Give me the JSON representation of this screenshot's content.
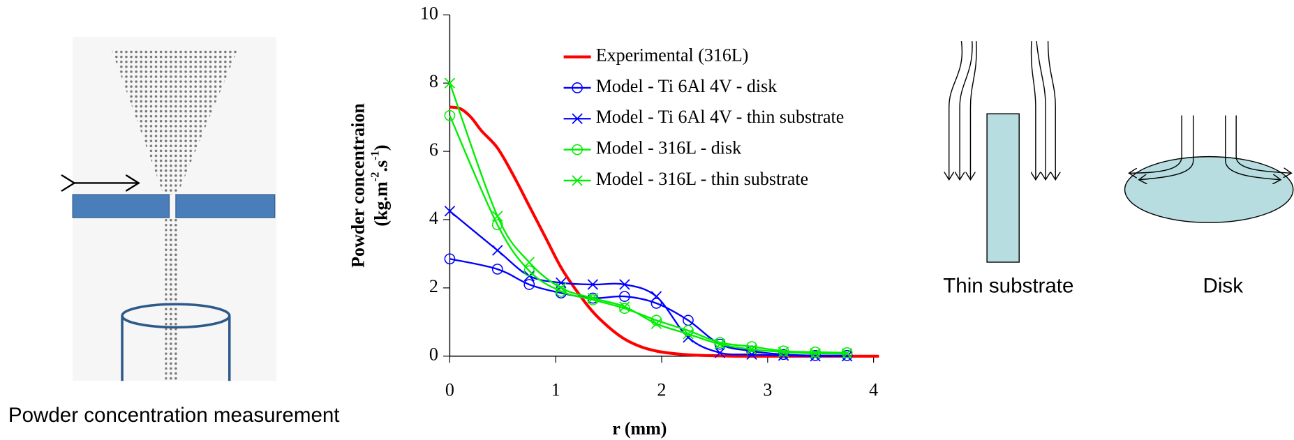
{
  "chart_data": {
    "type": "line",
    "x_label": "r (mm)",
    "y_label": {
      "line1": "Powder concentraion",
      "unit": [
        "(kg.m",
        "-2",
        ".s",
        "-1",
        ")"
      ]
    },
    "xlim": [
      0,
      4.05
    ],
    "ylim": [
      0,
      10
    ],
    "xticks": [
      0,
      1,
      2,
      3,
      4
    ],
    "yticks": [
      0,
      2,
      4,
      6,
      8,
      10
    ],
    "series": [
      {
        "name": "Experimental (316L)",
        "color": "#ff0000",
        "marker": "none",
        "x": [
          0,
          0.1,
          0.2,
          0.3,
          0.45,
          0.6,
          0.75,
          0.9,
          1.05,
          1.2,
          1.35,
          1.5,
          1.65,
          1.8,
          1.95,
          2.1,
          2.25,
          2.4,
          2.55,
          2.7,
          3,
          3.5,
          4.05
        ],
        "values": [
          7.3,
          7.25,
          7,
          6.6,
          6.1,
          5.3,
          4.4,
          3.5,
          2.6,
          1.9,
          1.3,
          0.85,
          0.5,
          0.28,
          0.15,
          0.08,
          0.04,
          0.02,
          0.01,
          0,
          0,
          0,
          0
        ]
      },
      {
        "name": "Model - Ti 6Al 4V - disk",
        "color": "#0000ff",
        "marker": "circle",
        "x": [
          0,
          0.45,
          0.75,
          1.05,
          1.35,
          1.65,
          1.95,
          2.25,
          2.55,
          2.85,
          3.15,
          3.45,
          3.75
        ],
        "values": [
          2.85,
          2.55,
          2.1,
          1.85,
          1.7,
          1.75,
          1.55,
          1.05,
          0.35,
          0.15,
          0.05,
          0.02,
          0.02
        ]
      },
      {
        "name": "Model - Ti 6Al 4V - thin substrate",
        "color": "#0000ff",
        "marker": "x",
        "x": [
          0,
          0.45,
          0.75,
          1.05,
          1.35,
          1.65,
          1.95,
          2.25,
          2.55,
          2.85,
          3.15,
          3.45,
          3.75
        ],
        "values": [
          4.25,
          3.1,
          2.35,
          2.15,
          2.1,
          2.1,
          1.75,
          0.55,
          0.1,
          0.05,
          0.02,
          0,
          0
        ]
      },
      {
        "name": "Model - 316L - disk",
        "color": "#00ee00",
        "marker": "circle",
        "x": [
          0,
          0.45,
          0.75,
          1.05,
          1.35,
          1.65,
          1.95,
          2.25,
          2.55,
          2.85,
          3.15,
          3.45,
          3.75
        ],
        "values": [
          7.05,
          3.85,
          2.5,
          1.9,
          1.65,
          1.4,
          1.05,
          0.75,
          0.4,
          0.28,
          0.15,
          0.12,
          0.1
        ]
      },
      {
        "name": "Model - 316L - thin substrate",
        "color": "#00ee00",
        "marker": "x",
        "x": [
          0,
          0.45,
          0.75,
          1.05,
          1.35,
          1.65,
          1.95,
          2.25,
          2.55,
          2.85,
          3.15,
          3.45,
          3.75
        ],
        "values": [
          8,
          4.1,
          2.75,
          2,
          1.7,
          1.45,
          0.95,
          0.65,
          0.35,
          0.2,
          0.12,
          0.08,
          0.08
        ]
      }
    ]
  },
  "captions": {
    "left": "Powder concentration measurement",
    "thin": "Thin substrate",
    "disk": "Disk"
  }
}
